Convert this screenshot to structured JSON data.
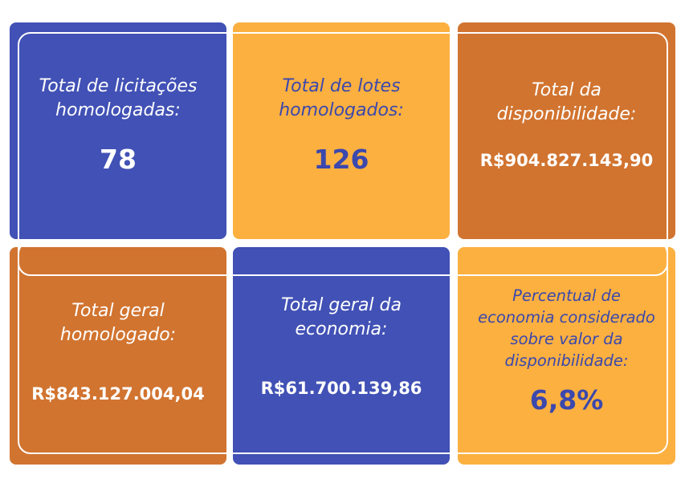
{
  "cards": [
    {
      "label": "Total de licitações\nhomologadas:",
      "value": "78"
    },
    {
      "label": "Total de lotes\nhomologados:",
      "value": "126"
    },
    {
      "label": "Total da\ndisponibilidade:",
      "value": "R$904.827.143,90"
    },
    {
      "label": "Total geral\nhomologado:",
      "value": "R$843.127.004,04"
    },
    {
      "label": "Total geral da\neconomia:",
      "value": "R$61.700.139,86"
    },
    {
      "label": "Percentual de\neconomia considerado\nsobre valor da\ndisponibilidade:",
      "value": "6,8%"
    }
  ],
  "colors": {
    "blue": "#4151b5",
    "yellow": "#fbb040",
    "orange": "#d17430",
    "white": "#ffffff"
  }
}
